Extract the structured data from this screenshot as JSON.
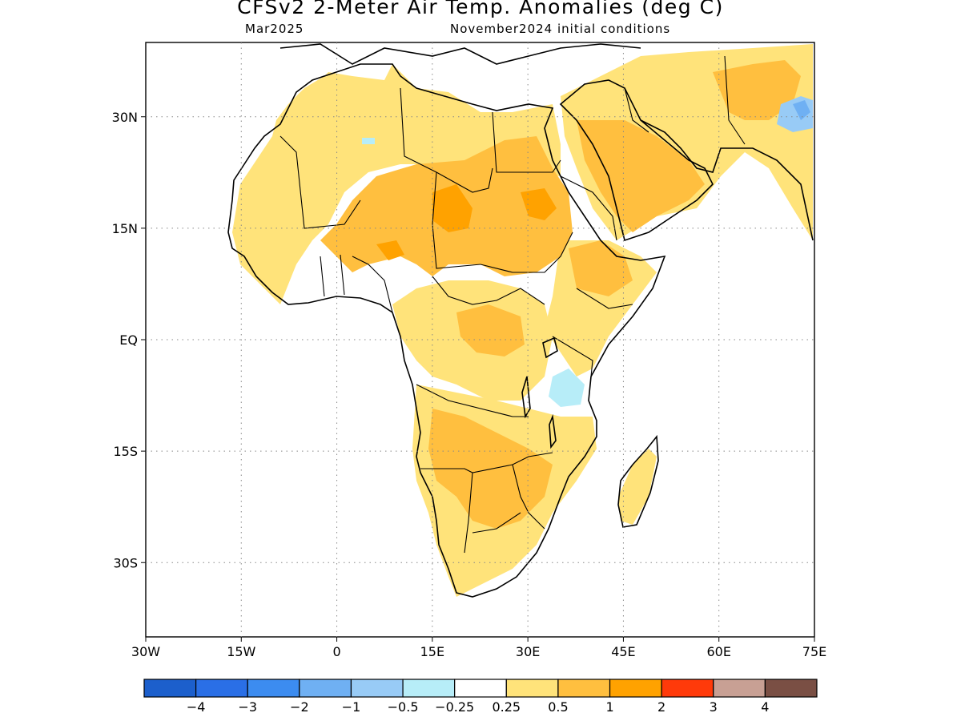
{
  "header": {
    "title": "CFSv2 2-Meter Air Temp. Anomalies (deg C)",
    "valid_month": "Mar2025",
    "init": "November2024 initial conditions"
  },
  "axes": {
    "x_ticks": [
      "30W",
      "15W",
      "0",
      "15E",
      "30E",
      "45E",
      "60E",
      "75E"
    ],
    "x_tick_lons": [
      -30,
      -15,
      0,
      15,
      30,
      45,
      60,
      75
    ],
    "y_ticks": [
      "30N",
      "15N",
      "EQ",
      "15S",
      "30S"
    ],
    "y_tick_lats": [
      30,
      15,
      0,
      -15,
      -30
    ],
    "lon_range": [
      -30,
      75
    ],
    "lat_range": [
      -40,
      40
    ],
    "grid": true
  },
  "colorbar": {
    "colors": [
      "#1c5fcc",
      "#2a6fe6",
      "#3c8cf0",
      "#6fb0f3",
      "#98cbf6",
      "#b7edf8",
      "#ffffff",
      "#ffe37a",
      "#ffbf3f",
      "#ffa200",
      "#ff3a0a",
      "#c8a094",
      "#7a4f44"
    ],
    "labels": [
      "-4",
      "-3",
      "-2",
      "-1",
      "-0.5",
      "-0.25",
      "0.25",
      "0.5",
      "1",
      "2",
      "3",
      "4"
    ]
  },
  "map_layers": {
    "land_color": "#ffffff",
    "coast_color": "#000000",
    "anomaly_colors": {
      "light": "#ffe37a",
      "moderate": "#ffbf3f",
      "strong": "#ffa200",
      "cool_light": "#b7edf8",
      "cool_moderate": "#98cbf6",
      "cool_strong": "#6fb0f3"
    }
  }
}
